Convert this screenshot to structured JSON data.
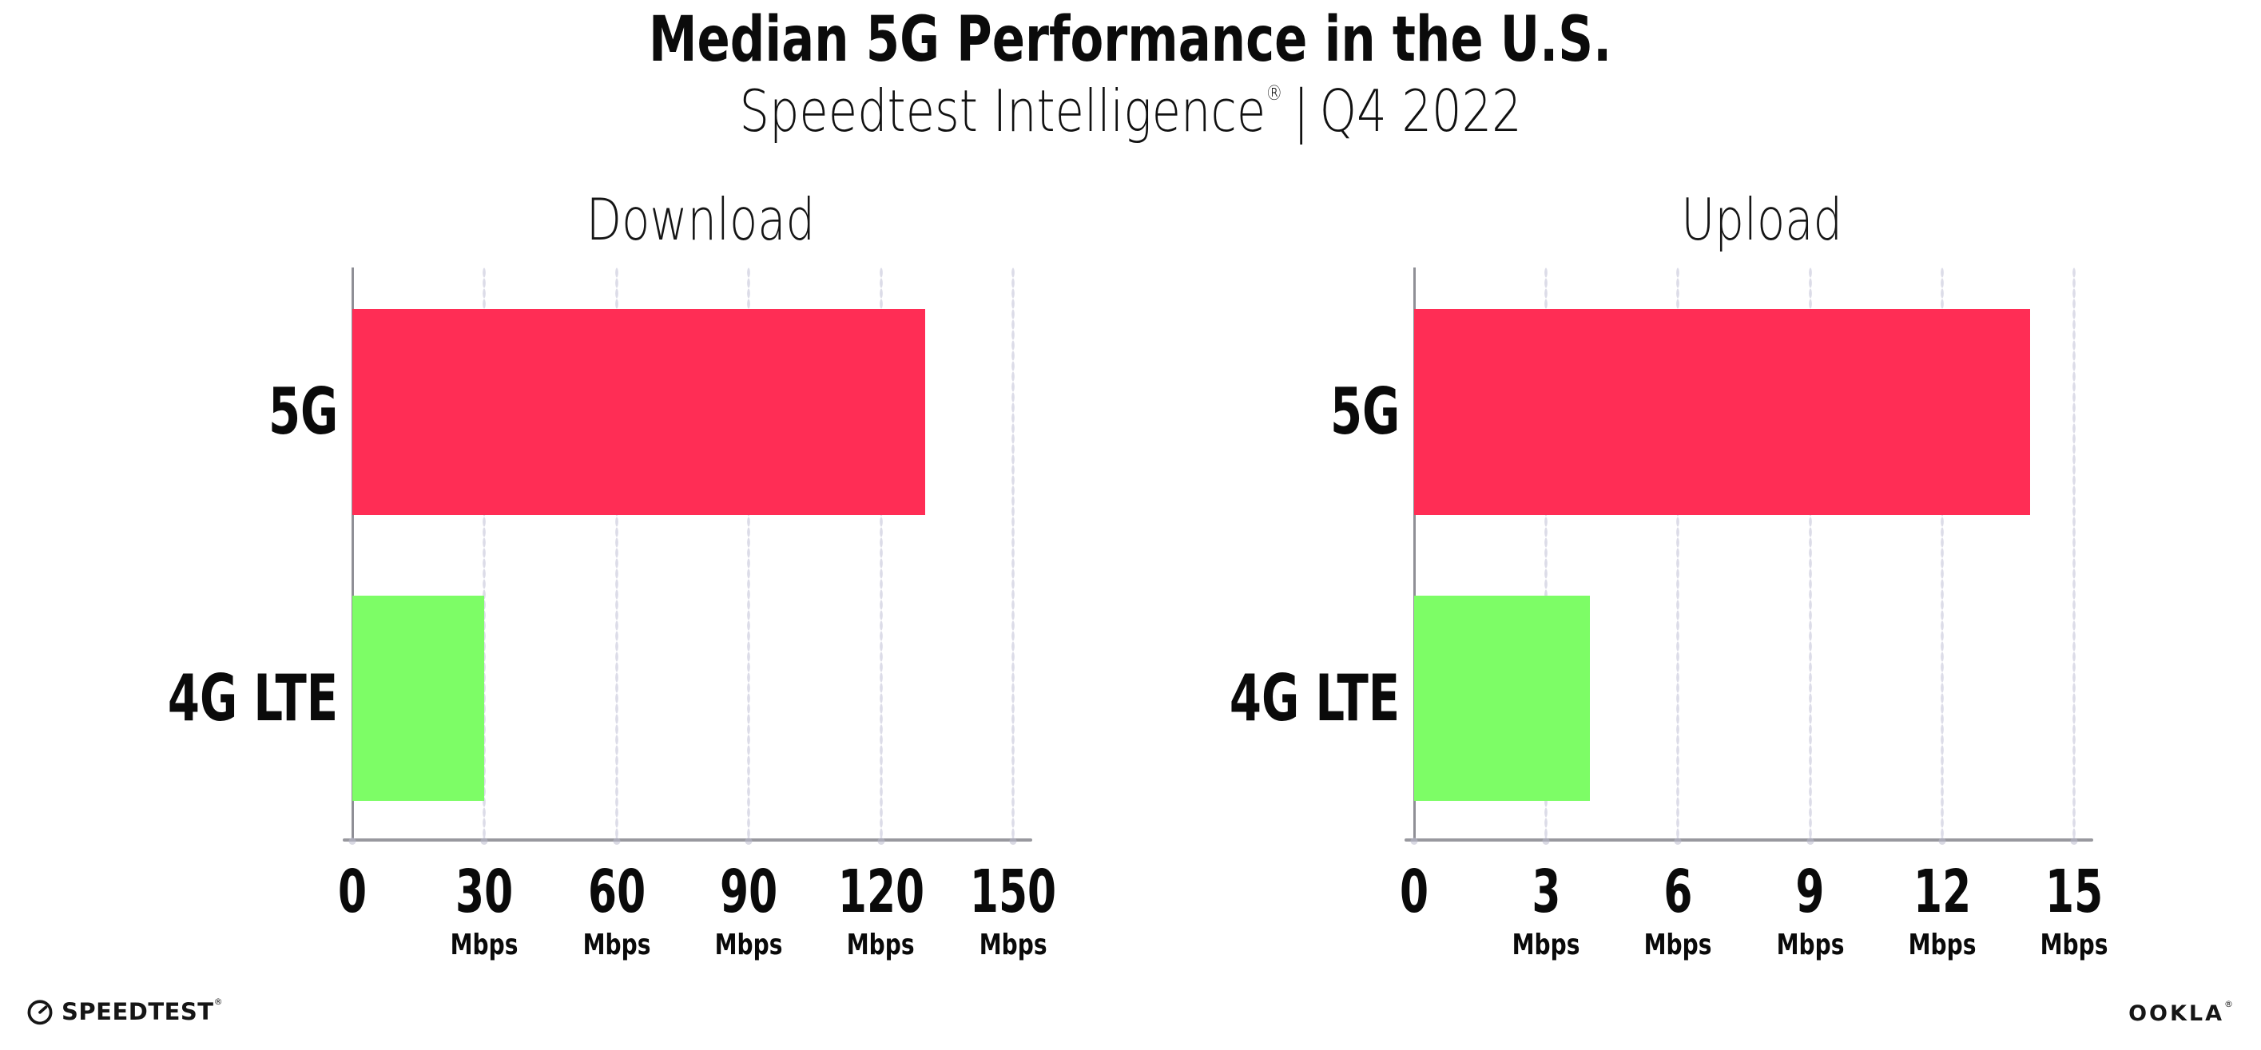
{
  "header": {
    "title": "Median 5G Performance in the U.S.",
    "subtitle_brand": "Speedtest Intelligence",
    "subtitle_reg": "®",
    "subtitle_separator": "|",
    "subtitle_period": "Q4 2022"
  },
  "footer": {
    "speedtest_logo_text": "SPEEDTEST",
    "speedtest_reg": "®",
    "ookla_logo_text": "OOKLA",
    "ookla_reg": "®"
  },
  "colors": {
    "bar_5g": "#ff2d55",
    "bar_4g_lte": "#7dfd66",
    "axis_line": "#98989e",
    "spine_line": "#8f8f96",
    "grid_dot": "#dcdce8",
    "text": "#0b0b0b"
  },
  "chart_data": [
    {
      "type": "bar",
      "orientation": "horizontal",
      "title": "Download",
      "categories": [
        "5G",
        "4G LTE"
      ],
      "values": [
        130,
        30
      ],
      "unit": "Mbps",
      "xlim": [
        0,
        150
      ],
      "xticks": [
        0,
        30,
        60,
        90,
        120,
        150
      ],
      "grid": "dotted-vertical",
      "legend": "none",
      "bar_colors": [
        "#ff2d55",
        "#7dfd66"
      ]
    },
    {
      "type": "bar",
      "orientation": "horizontal",
      "title": "Upload",
      "categories": [
        "5G",
        "4G LTE"
      ],
      "values": [
        14,
        4
      ],
      "unit": "Mbps",
      "xlim": [
        0,
        15
      ],
      "xticks": [
        0,
        3,
        6,
        9,
        12,
        15
      ],
      "grid": "dotted-vertical",
      "legend": "none",
      "bar_colors": [
        "#ff2d55",
        "#7dfd66"
      ]
    }
  ]
}
